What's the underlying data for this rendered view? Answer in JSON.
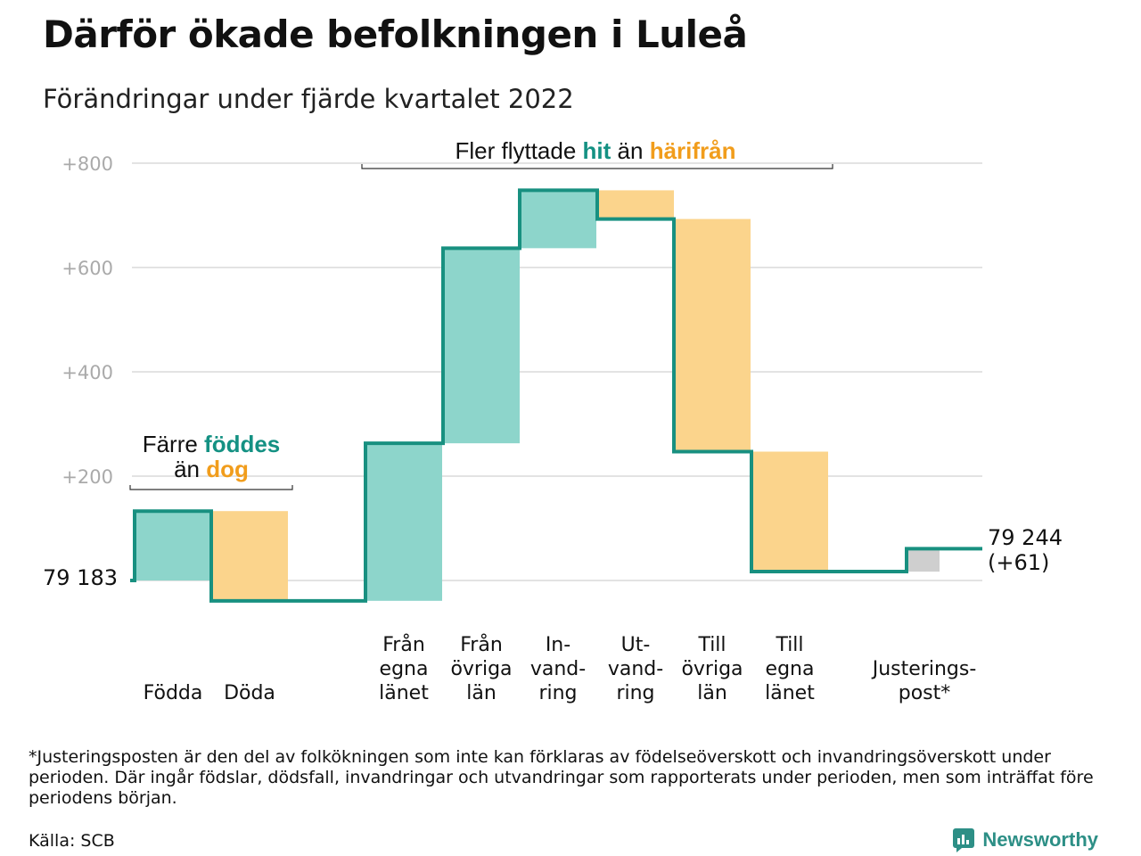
{
  "title": "Därför ökade befolkningen i Luleå",
  "subtitle": "Förändringar under fjärde kvartalet 2022",
  "colors": {
    "positive": "#8dd5cb",
    "negative": "#fbd48c",
    "adjustment": "#cfcfcf",
    "line": "#189080",
    "teal_text": "#149183",
    "orange_text": "#f19d1c"
  },
  "chart_data": {
    "type": "waterfall",
    "start_value": 79183,
    "start_label": "79 183",
    "end_label_line1": "79 244",
    "end_label_line2": "(+61)",
    "ylim": [
      -40,
      800
    ],
    "yticks": [
      200,
      400,
      600,
      800
    ],
    "ytick_labels": [
      "+200",
      "+400",
      "+600",
      "+800"
    ],
    "grid": true,
    "categories": [
      {
        "lines": [
          "Födda"
        ],
        "change": 133
      },
      {
        "lines": [
          "Döda"
        ],
        "change": -172
      },
      {
        "lines": [
          "Från",
          "egna",
          "länet"
        ],
        "change": 302
      },
      {
        "lines": [
          "Från",
          "övriga",
          "län"
        ],
        "change": 374
      },
      {
        "lines": [
          "In-",
          "vand-",
          "ring"
        ],
        "change": 111
      },
      {
        "lines": [
          "Ut-",
          "vand-",
          "ring"
        ],
        "change": -55
      },
      {
        "lines": [
          "Till",
          "övriga",
          "län"
        ],
        "change": -446
      },
      {
        "lines": [
          "Till",
          "egna",
          "länet"
        ],
        "change": -230
      },
      {
        "lines": [
          "Justerings-",
          "post*"
        ],
        "change": 44
      }
    ],
    "annotations": {
      "births": {
        "line1": "Färre ",
        "line1_hl": "föddes",
        "line2": "än ",
        "line2_hl": "dog"
      },
      "migration": {
        "text1": "Fler flyttade ",
        "hl1": "hit",
        "text2": " än ",
        "hl2": "härifrån"
      }
    }
  },
  "footnote": "*Justeringsposten är den del av folkökningen som inte kan förklaras av födelseöverskott och invandringsöverskott under perioden. Där ingår födslar, dödsfall, invandringar och utvandringar som rapporterats under perioden, men som inträffat före periodens början.",
  "source": "Källa: SCB",
  "brand": "Newsworthy",
  "brand_icon": "newsworthy-logo-icon"
}
